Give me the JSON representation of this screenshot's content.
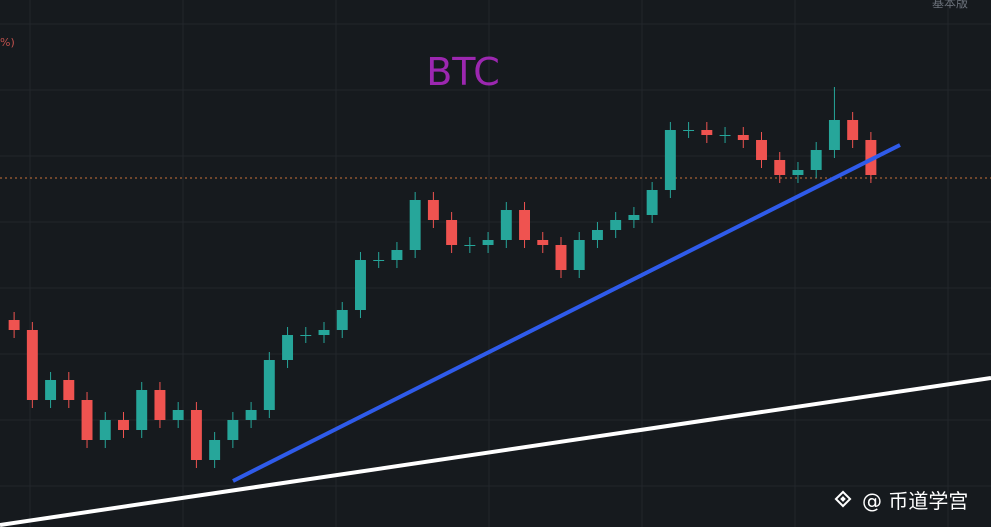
{
  "chart_data": {
    "type": "candlestick",
    "title": "BTC",
    "header_label": "基本版",
    "axis_fragment": "%)",
    "watermark": "@ 币道学宫",
    "ylim": [
      0,
      527
    ],
    "up_color": "#26a69a",
    "down_color": "#ef5350",
    "open": [
      207,
      197,
      127,
      147,
      127,
      87,
      107,
      97,
      137,
      107,
      117,
      67,
      87,
      107,
      117,
      167,
      192,
      192,
      197,
      217,
      267,
      267,
      277,
      327,
      307,
      282,
      282,
      287,
      317,
      287,
      282,
      257,
      287,
      297,
      307,
      312,
      337,
      397,
      397,
      392,
      392,
      387,
      367,
      352,
      357,
      377,
      407,
      387
    ],
    "high": [
      215,
      205,
      155,
      155,
      135,
      115,
      115,
      145,
      145,
      125,
      125,
      95,
      115,
      125,
      175,
      200,
      200,
      205,
      225,
      275,
      275,
      285,
      335,
      335,
      315,
      290,
      295,
      325,
      325,
      295,
      290,
      295,
      305,
      315,
      320,
      345,
      405,
      405,
      405,
      400,
      400,
      395,
      375,
      365,
      385,
      440,
      415,
      395
    ],
    "low": [
      189,
      119,
      119,
      119,
      79,
      79,
      89,
      89,
      99,
      99,
      59,
      59,
      79,
      99,
      109,
      159,
      184,
      184,
      189,
      209,
      259,
      259,
      269,
      299,
      274,
      274,
      274,
      279,
      279,
      274,
      249,
      249,
      279,
      289,
      299,
      304,
      329,
      389,
      384,
      384,
      379,
      359,
      344,
      344,
      349,
      369,
      379,
      344
    ],
    "close": [
      197,
      127,
      147,
      127,
      87,
      107,
      97,
      137,
      107,
      117,
      67,
      87,
      107,
      117,
      167,
      192,
      192,
      197,
      217,
      267,
      267,
      277,
      327,
      307,
      282,
      282,
      287,
      317,
      287,
      282,
      257,
      287,
      297,
      307,
      312,
      337,
      397,
      397,
      392,
      392,
      387,
      367,
      352,
      357,
      377,
      407,
      387,
      352
    ]
  }
}
